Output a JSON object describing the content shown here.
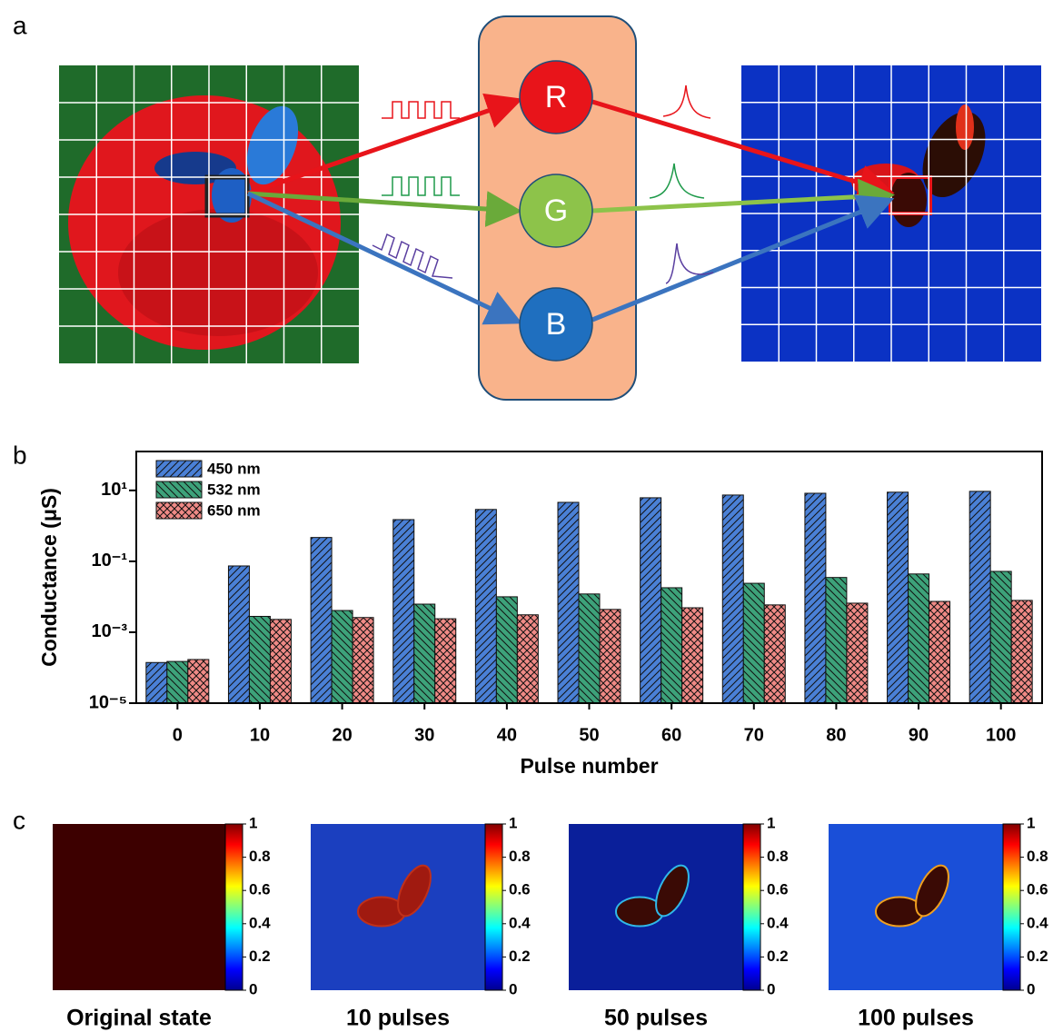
{
  "panels": {
    "a": {
      "label": "a",
      "nodes": [
        {
          "label": "R"
        },
        {
          "label": "G"
        },
        {
          "label": "B"
        }
      ]
    },
    "b": {
      "label": "b"
    },
    "c": {
      "label": "c",
      "maps": [
        {
          "caption": "Original state"
        },
        {
          "caption": "10 pulses"
        },
        {
          "caption": "50 pulses"
        },
        {
          "caption": "100 pulses"
        }
      ],
      "colorbar_ticks": [
        0,
        0.2,
        0.4,
        0.6,
        0.8,
        1
      ]
    }
  },
  "chart_data": {
    "type": "bar",
    "ylabel": "Conductance (μS)",
    "xlabel": "Pulse number",
    "categories": [
      "0",
      "10",
      "20",
      "30",
      "40",
      "50",
      "60",
      "70",
      "80",
      "90",
      "100"
    ],
    "series": [
      {
        "name": "450 nm",
        "color": "#4a80d6",
        "values": [
          0.00014,
          0.074,
          0.47,
          1.5,
          2.9,
          4.6,
          6.2,
          7.4,
          8.3,
          8.9,
          9.4
        ]
      },
      {
        "name": "532 nm",
        "color": "#3da27a",
        "values": [
          0.00015,
          0.0028,
          0.0041,
          0.0062,
          0.01,
          0.012,
          0.018,
          0.024,
          0.035,
          0.044,
          0.052
        ]
      },
      {
        "name": "650 nm",
        "color": "#f08a86",
        "values": [
          0.00017,
          0.0023,
          0.0026,
          0.0024,
          0.0031,
          0.0044,
          0.0049,
          0.0059,
          0.0066,
          0.0074,
          0.0079
        ]
      }
    ],
    "log_y": true,
    "ylim": [
      1e-05,
      125
    ],
    "yticks": [
      {
        "value": 1e-05,
        "label": "10⁻⁵"
      },
      {
        "value": 0.001,
        "label": "10⁻³"
      },
      {
        "value": 0.1,
        "label": "10⁻¹"
      },
      {
        "value": 10,
        "label": "10¹"
      }
    ],
    "legend": "upper left"
  }
}
